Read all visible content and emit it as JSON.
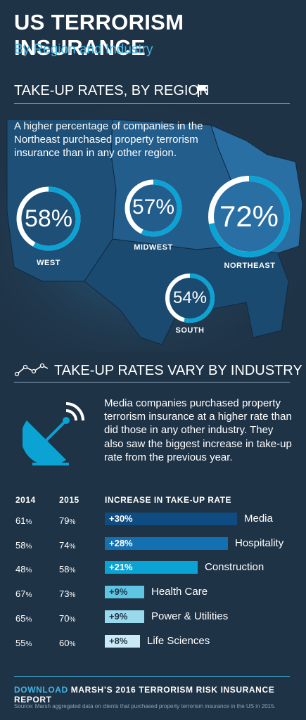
{
  "header": {
    "title": "US TERRORISM INSURANCE",
    "subtitle": "By Region and Industry"
  },
  "region_section": {
    "heading": "TAKE-UP RATES, BY REGION",
    "intro": "A higher percentage of companies in the Northeast purchased property terrorism insurance than in any other region.",
    "regions": [
      {
        "name": "WEST",
        "value_label": "58%",
        "value": 58
      },
      {
        "name": "MIDWEST",
        "value_label": "57%",
        "value": 57
      },
      {
        "name": "NORTHEAST",
        "value_label": "72%",
        "value": 72
      },
      {
        "name": "SOUTH",
        "value_label": "54%",
        "value": 54
      }
    ]
  },
  "industry_section": {
    "heading": "TAKE-UP RATES VARY BY INDUSTRY",
    "description": "Media companies purchased property terrorism insurance at a higher rate than did those in any other industry. They also saw the biggest increase in take-up rate from the previous year.",
    "columns": {
      "y2014": "2014",
      "y2015": "2015",
      "increase": "INCREASE IN TAKE-UP RATE"
    },
    "rows": [
      {
        "industry": "Media",
        "y2014": "61",
        "y2015": "79",
        "increase_label": "+30%",
        "increase": 30,
        "color": "#0f4c81"
      },
      {
        "industry": "Hospitality",
        "y2014": "58",
        "y2015": "74",
        "increase_label": "+28%",
        "increase": 28,
        "color": "#1470b0"
      },
      {
        "industry": "Construction",
        "y2014": "48",
        "y2015": "58",
        "increase_label": "+21%",
        "increase": 21,
        "color": "#0aa3d4"
      },
      {
        "industry": "Health Care",
        "y2014": "67",
        "y2015": "73",
        "increase_label": "+9%",
        "increase": 9,
        "color": "#5ec6e3"
      },
      {
        "industry": "Power & Utilities",
        "y2014": "65",
        "y2015": "70",
        "increase_label": "+9%",
        "increase": 9,
        "color": "#9ad8ec"
      },
      {
        "industry": "Life Sciences",
        "y2014": "55",
        "y2015": "60",
        "increase_label": "+8%",
        "increase": 8,
        "color": "#cbeaf5"
      }
    ]
  },
  "footer": {
    "download": "DOWNLOAD",
    "report": "MARSH’S 2016 TERRORISM RISK INSURANCE REPORT",
    "source": "Source: Marsh aggregated data on clients that purchased property terrorism insurance in the US in 2015."
  },
  "colors": {
    "accent": "#41b6e6",
    "background": "#1f3346",
    "ring_track": "#ffffff"
  },
  "icons": [
    "flag-icon",
    "trend-line-icon",
    "satellite-dish-icon"
  ]
}
